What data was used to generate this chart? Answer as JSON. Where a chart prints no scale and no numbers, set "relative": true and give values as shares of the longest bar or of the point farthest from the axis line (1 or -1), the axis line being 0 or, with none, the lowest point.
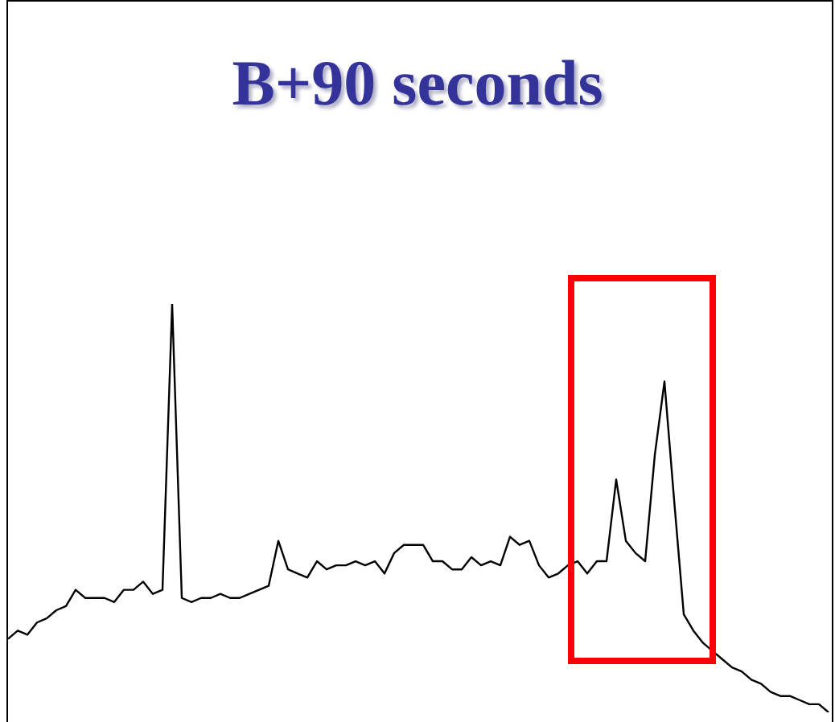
{
  "chart_data": {
    "type": "line",
    "title": "B+90 seconds",
    "relative": true,
    "marker": "none",
    "line_style": "solid",
    "categories": [
      null,
      null,
      null,
      null,
      null,
      null,
      null,
      null,
      null,
      null,
      null,
      null,
      null,
      null,
      null,
      null,
      null,
      null,
      null,
      null,
      null,
      null,
      null,
      null,
      null,
      null,
      null,
      null,
      null,
      null,
      null,
      null,
      null,
      null,
      null,
      null,
      null,
      null,
      null,
      null,
      null,
      null,
      null,
      null,
      null,
      null,
      null,
      null,
      null,
      null,
      null,
      null,
      null,
      null,
      null,
      null,
      null,
      null,
      null,
      null,
      null,
      null,
      null,
      null,
      null,
      null,
      null,
      null,
      null,
      null,
      null,
      null,
      null,
      null,
      null,
      null,
      null,
      null,
      null,
      null,
      null,
      null,
      null,
      null,
      null,
      null
    ],
    "series": [
      {
        "color": "#000000",
        "values": [
          0.18,
          0.2,
          0.19,
          0.22,
          0.23,
          0.25,
          0.26,
          0.3,
          0.28,
          0.28,
          0.28,
          0.27,
          0.3,
          0.3,
          0.32,
          0.29,
          0.3,
          1.0,
          0.28,
          0.27,
          0.28,
          0.28,
          0.29,
          0.28,
          0.28,
          0.29,
          0.3,
          0.31,
          0.42,
          0.35,
          0.34,
          0.33,
          0.37,
          0.35,
          0.36,
          0.36,
          0.37,
          0.36,
          0.37,
          0.34,
          0.39,
          0.41,
          0.41,
          0.41,
          0.37,
          0.37,
          0.35,
          0.35,
          0.38,
          0.36,
          0.37,
          0.36,
          0.43,
          0.41,
          0.42,
          0.36,
          0.33,
          0.34,
          0.36,
          0.37,
          0.34,
          0.37,
          0.37,
          0.57,
          0.42,
          0.39,
          0.37,
          0.63,
          0.81,
          0.52,
          0.24,
          0.2,
          0.17,
          0.15,
          0.13,
          0.11,
          0.1,
          0.08,
          0.07,
          0.05,
          0.04,
          0.04,
          0.03,
          0.02,
          0.02,
          0
        ]
      }
    ]
  }
}
